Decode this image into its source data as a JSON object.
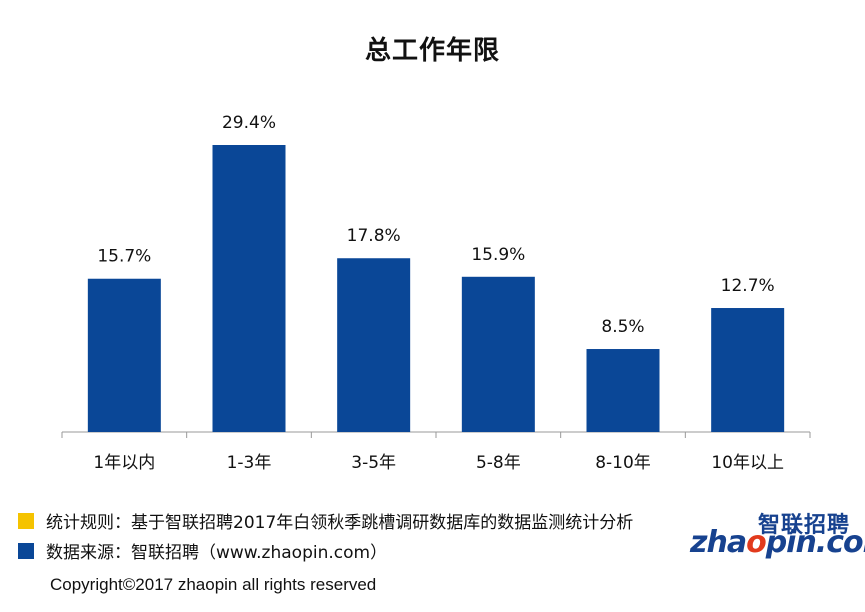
{
  "title": "总工作年限",
  "colors": {
    "bar": "#0a4797",
    "note1": "#f5c300",
    "note2": "#0a4797",
    "axis": "#999999"
  },
  "chart_data": {
    "type": "bar",
    "title": "总工作年限",
    "categories": [
      "1年以内",
      "1-3年",
      "3-5年",
      "5-8年",
      "8-10年",
      "10年以上"
    ],
    "values": [
      15.7,
      29.4,
      17.8,
      15.9,
      8.5,
      12.7
    ],
    "data_labels": [
      "15.7%",
      "29.4%",
      "17.8%",
      "15.9%",
      "8.5%",
      "12.7%"
    ],
    "unit": "%",
    "ylim": [
      0,
      30
    ],
    "grid": false,
    "legend": "none"
  },
  "notes": [
    {
      "text": "统计规则：基于智联招聘2017年白领秋季跳槽调研数据库的数据监测统计分析",
      "color": "#f5c300"
    },
    {
      "text": "数据来源：智联招聘（www.zhaopin.com）",
      "color": "#0a4797"
    }
  ],
  "logo": {
    "cn": "智联招聘",
    "en_prefix": "zha",
    "en_o": "o",
    "en_suffix": "pin.com"
  },
  "copyright": "Copyright©2017 zhaopin all rights reserved"
}
